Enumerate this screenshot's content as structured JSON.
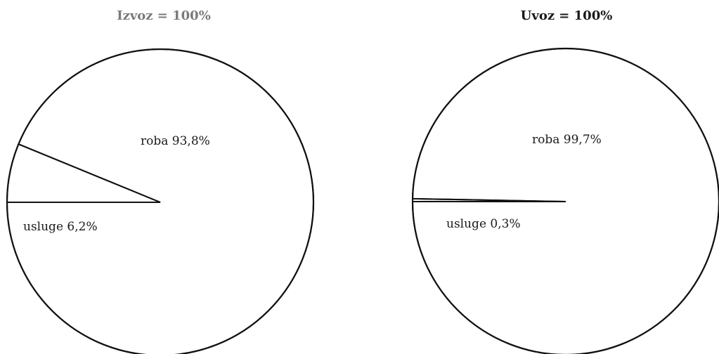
{
  "colors": {
    "stroke": "#111111",
    "fill": "#ffffff",
    "title_left": "#7a7a7a",
    "title_right": "#1a1a1a",
    "label": "#1a1a1a"
  },
  "chart_data": [
    {
      "type": "pie",
      "title": "Izvoz = 100%",
      "slices": [
        {
          "label": "roba 93,8%",
          "value": 93.8
        },
        {
          "label": "usluge 6,2%",
          "value": 6.2
        }
      ]
    },
    {
      "type": "pie",
      "title": "Uvoz = 100%",
      "slices": [
        {
          "label": "roba 99,7%",
          "value": 99.7
        },
        {
          "label": "usluge 0,3%",
          "value": 0.3
        }
      ]
    }
  ]
}
